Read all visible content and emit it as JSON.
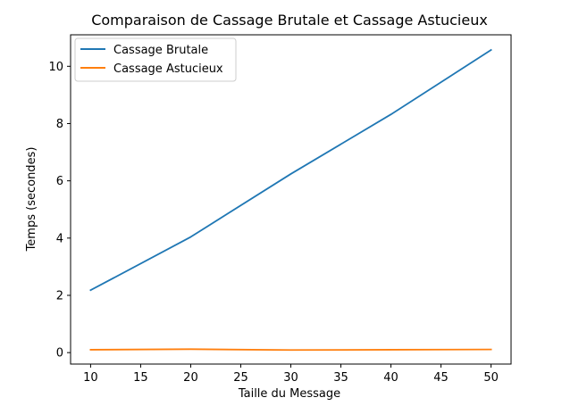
{
  "chart_data": {
    "type": "line",
    "title": "Comparaison de Cassage Brutale et Cassage Astucieux",
    "xlabel": "Taille du Message",
    "ylabel": "Temps (secondes)",
    "x": [
      10,
      20,
      30,
      40,
      50
    ],
    "series": [
      {
        "name": "Cassage Brutale",
        "values": [
          2.18,
          4.04,
          6.24,
          8.32,
          10.57
        ],
        "color": "#1f77b4"
      },
      {
        "name": "Cassage Astucieux",
        "values": [
          0.1,
          0.12,
          0.09,
          0.1,
          0.11
        ],
        "color": "#ff7f0e"
      }
    ],
    "xlim": [
      8,
      52
    ],
    "ylim": [
      -0.4,
      11.1
    ],
    "xticks": [
      10,
      15,
      20,
      25,
      30,
      35,
      40,
      45,
      50
    ],
    "yticks": [
      0,
      2,
      4,
      6,
      8,
      10
    ],
    "grid": false,
    "legend_position": "top-left"
  }
}
